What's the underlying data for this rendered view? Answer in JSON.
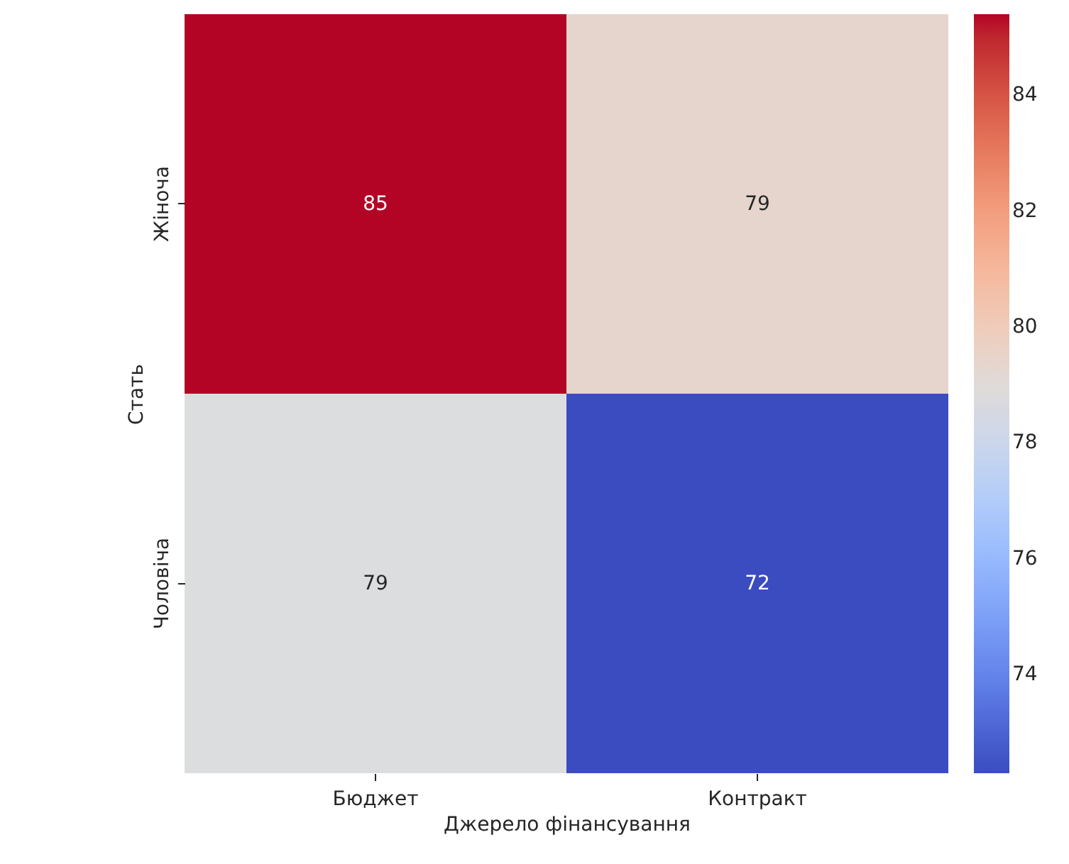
{
  "chart_data": {
    "type": "heatmap",
    "xlabel": "Джерело фінансування",
    "ylabel": "Стать",
    "categories": [
      "Бюджет",
      "Контракт"
    ],
    "y_categories": [
      "Жіноча",
      "Чоловіча"
    ],
    "cells": [
      [
        85.4,
        79.4
      ],
      [
        78.8,
        72.3
      ]
    ],
    "cell_labels": [
      [
        "85",
        "79"
      ],
      [
        "79",
        "72"
      ]
    ],
    "clim": [
      72.3,
      85.4
    ],
    "cticks": [
      74,
      76,
      78,
      80,
      82,
      84
    ]
  }
}
